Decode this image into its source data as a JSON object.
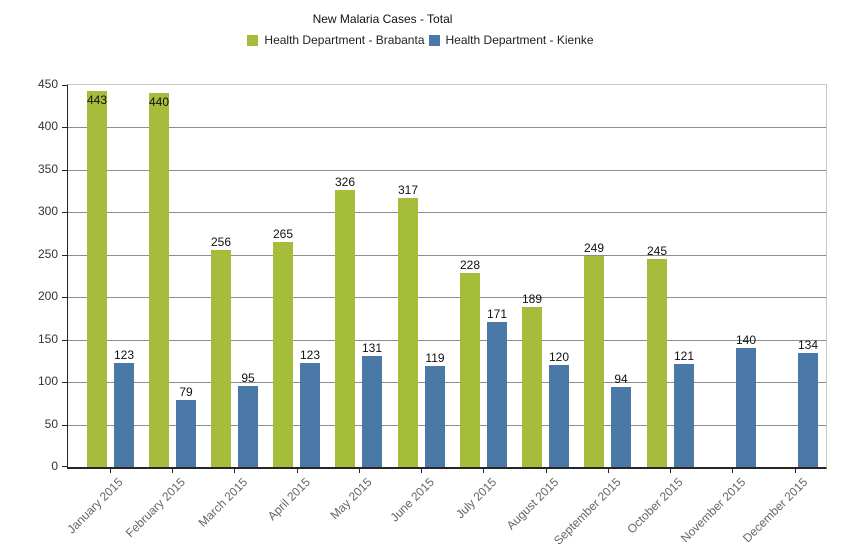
{
  "chart_data": {
    "type": "bar",
    "title": "New Malaria Cases - Total",
    "categories": [
      "January 2015",
      "February 2015",
      "March 2015",
      "April 2015",
      "May 2015",
      "June 2015",
      "July 2015",
      "August 2015",
      "September 2015",
      "October 2015",
      "November 2015",
      "December 2015"
    ],
    "series": [
      {
        "name": "Health Department - Brabanta",
        "color": "#a6bd3c",
        "values": [
          443,
          440,
          256,
          265,
          326,
          317,
          228,
          189,
          249,
          245,
          null,
          null
        ]
      },
      {
        "name": "Health Department - Kienke",
        "color": "#4a79a8",
        "values": [
          123,
          79,
          95,
          123,
          131,
          119,
          171,
          120,
          94,
          121,
          140,
          134
        ]
      }
    ],
    "xlabel": "",
    "ylabel": "",
    "ylim": [
      0,
      450
    ],
    "ytick_step": 50,
    "grid": true,
    "legend_position": "top",
    "bar_labels_shown": true,
    "colors": {
      "gridline": "#8d8d8d",
      "plot_border": "#c8c8c8",
      "axis": "#262626",
      "x_label_text": "#666666",
      "y_label_text": "#333333",
      "value_label_text": "#111111"
    }
  }
}
